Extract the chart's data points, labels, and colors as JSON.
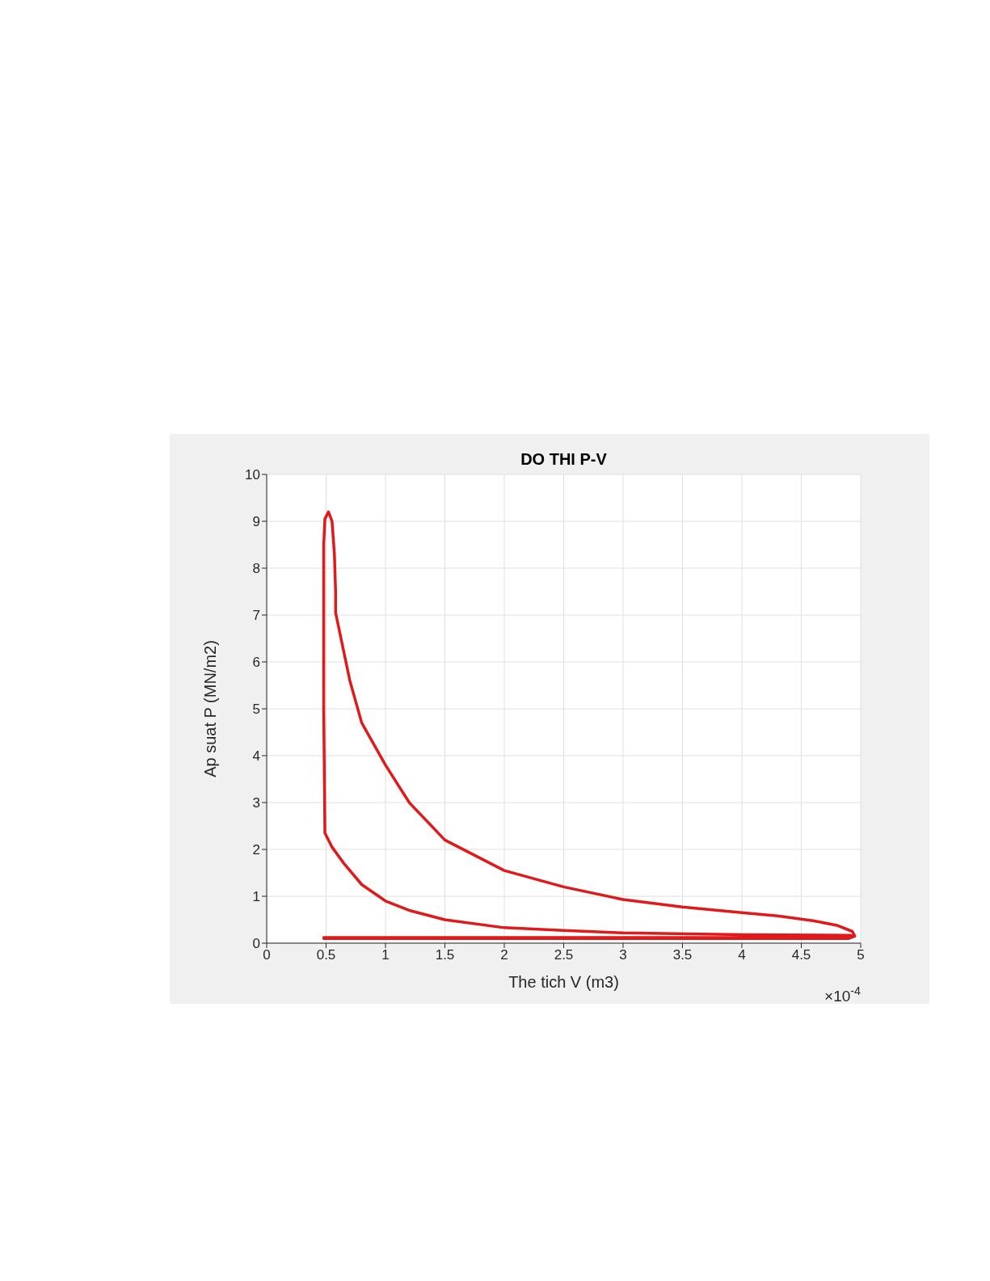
{
  "chart_data": {
    "type": "line",
    "title": "DO THI P-V",
    "xlabel": "The tich V (m3)",
    "ylabel": "Ap suat P (MN/m2)",
    "annotations": [
      "×10$^{-4}$"
    ],
    "series": [
      {
        "color": "#e01a1a",
        "x": [
          0.48,
          1,
          2,
          3,
          4,
          4.9,
          4.95,
          4.9,
          4,
          3,
          2.5,
          2,
          1.5,
          1.2,
          1,
          0.8,
          0.65,
          0.55,
          0.49,
          0.48,
          0.48,
          0.49,
          0.52,
          0.55,
          0.57,
          0.58,
          0.58,
          0.7,
          0.8,
          1,
          1.2,
          1.5,
          2,
          2.5,
          3,
          3.5,
          4,
          4.3,
          4.6,
          4.8,
          4.93,
          4.95,
          4.9,
          4,
          3,
          2,
          1,
          0.48
        ],
        "values": [
          0.1,
          0.1,
          0.1,
          0.1,
          0.1,
          0.1,
          0.15,
          0.17,
          0.18,
          0.22,
          0.27,
          0.33,
          0.5,
          0.7,
          0.9,
          1.25,
          1.7,
          2.05,
          2.35,
          5,
          8.5,
          9.05,
          9.2,
          9.0,
          8.3,
          7.5,
          7.05,
          5.6,
          4.7,
          3.8,
          3.0,
          2.2,
          1.55,
          1.2,
          0.93,
          0.77,
          0.65,
          0.58,
          0.48,
          0.38,
          0.25,
          0.15,
          0.12,
          0.12,
          0.12,
          0.12,
          0.12,
          0.12
        ]
      }
    ],
    "xlim": [
      0,
      5
    ],
    "xticks": [
      0,
      0.5,
      1,
      1.5,
      2,
      2.5,
      3,
      3.5,
      4,
      4.5,
      5
    ],
    "ylim": [
      0,
      10
    ],
    "yticks": [
      0,
      1,
      2,
      3,
      4,
      5,
      6,
      7,
      8,
      9,
      10
    ],
    "grid": true,
    "legend": false,
    "marker": "none",
    "line_style": "solid"
  }
}
